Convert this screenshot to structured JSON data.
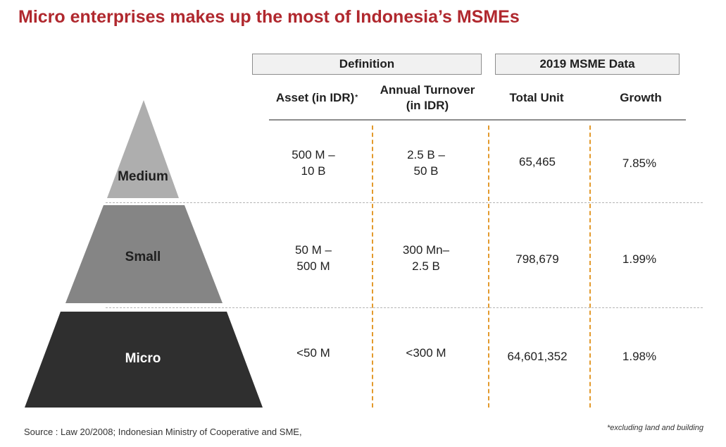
{
  "title": "Micro enterprises makes up the most of Indonesia’s MSMEs",
  "headers": {
    "definition": "Definition",
    "msme_data": "2019 MSME Data"
  },
  "columns": {
    "asset": "Asset (in IDR)",
    "asset_marker": "*",
    "turnover_line1": "Annual Turnover",
    "turnover_line2": "(in IDR)",
    "total_unit": "Total Unit",
    "growth": "Growth"
  },
  "rows": [
    {
      "tier": "Medium",
      "asset_line1": "500 M –",
      "asset_line2": "10 B",
      "turnover_line1": "2.5 B –",
      "turnover_line2": "50 B",
      "total_unit": "65,465",
      "growth": "7.85%"
    },
    {
      "tier": "Small",
      "asset_line1": "50 M –",
      "asset_line2": "500 M",
      "turnover_line1": "300 Mn–",
      "turnover_line2": "2.5 B",
      "total_unit": "798,679",
      "growth": "1.99%"
    },
    {
      "tier": "Micro",
      "asset_line1": "<50 M",
      "asset_line2": "",
      "turnover_line1": "<300 M",
      "turnover_line2": "",
      "total_unit": "64,601,352",
      "growth": "1.98%"
    }
  ],
  "colors": {
    "title": "#b0282e",
    "medium": "#aeaeae",
    "small": "#858585",
    "micro": "#2f2f2f",
    "divider": "#e39a2c"
  },
  "footer": {
    "source": "Source : Law 20/2008; Indonesian Ministry of Cooperative and SME,",
    "note": "*excluding land and building"
  }
}
